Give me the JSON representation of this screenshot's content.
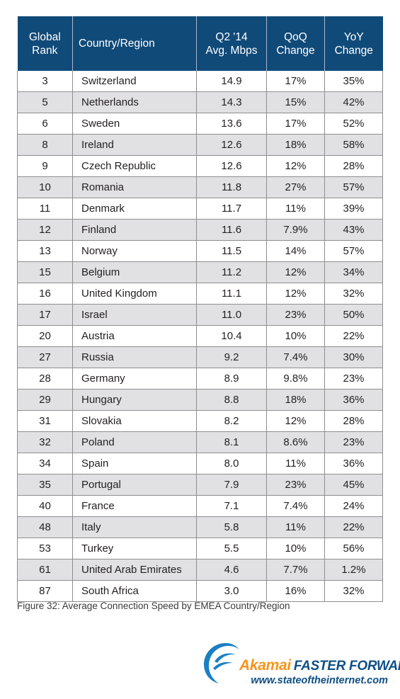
{
  "table": {
    "headers": [
      {
        "line1": "Global",
        "line2": "Rank"
      },
      {
        "line1": "Country/Region",
        "line2": ""
      },
      {
        "line1": "Q2 '14",
        "line2": "Avg. Mbps"
      },
      {
        "line1": "QoQ",
        "line2": "Change"
      },
      {
        "line1": "YoY",
        "line2": "Change"
      }
    ],
    "rows": [
      {
        "rank": "3",
        "country": "Switzerland",
        "avg": "14.9",
        "qoq": "17%",
        "yoy": "35%"
      },
      {
        "rank": "5",
        "country": "Netherlands",
        "avg": "14.3",
        "qoq": "15%",
        "yoy": "42%"
      },
      {
        "rank": "6",
        "country": "Sweden",
        "avg": "13.6",
        "qoq": "17%",
        "yoy": "52%"
      },
      {
        "rank": "8",
        "country": "Ireland",
        "avg": "12.6",
        "qoq": "18%",
        "yoy": "58%"
      },
      {
        "rank": "9",
        "country": "Czech Republic",
        "avg": "12.6",
        "qoq": "12%",
        "yoy": "28%"
      },
      {
        "rank": "10",
        "country": "Romania",
        "avg": "11.8",
        "qoq": "27%",
        "yoy": "57%"
      },
      {
        "rank": "11",
        "country": "Denmark",
        "avg": "11.7",
        "qoq": "11%",
        "yoy": "39%"
      },
      {
        "rank": "12",
        "country": "Finland",
        "avg": "11.6",
        "qoq": "7.9%",
        "yoy": "43%"
      },
      {
        "rank": "13",
        "country": "Norway",
        "avg": "11.5",
        "qoq": "14%",
        "yoy": "57%"
      },
      {
        "rank": "15",
        "country": "Belgium",
        "avg": "11.2",
        "qoq": "12%",
        "yoy": "34%"
      },
      {
        "rank": "16",
        "country": "United Kingdom",
        "avg": "11.1",
        "qoq": "12%",
        "yoy": "32%"
      },
      {
        "rank": "17",
        "country": "Israel",
        "avg": "11.0",
        "qoq": "23%",
        "yoy": "50%"
      },
      {
        "rank": "20",
        "country": "Austria",
        "avg": "10.4",
        "qoq": "10%",
        "yoy": "22%"
      },
      {
        "rank": "27",
        "country": "Russia",
        "avg": "9.2",
        "qoq": "7.4%",
        "yoy": "30%"
      },
      {
        "rank": "28",
        "country": "Germany",
        "avg": "8.9",
        "qoq": "9.8%",
        "yoy": "23%"
      },
      {
        "rank": "29",
        "country": "Hungary",
        "avg": "8.8",
        "qoq": "18%",
        "yoy": "36%"
      },
      {
        "rank": "31",
        "country": "Slovakia",
        "avg": "8.2",
        "qoq": "12%",
        "yoy": "28%"
      },
      {
        "rank": "32",
        "country": "Poland",
        "avg": "8.1",
        "qoq": "8.6%",
        "yoy": "23%"
      },
      {
        "rank": "34",
        "country": "Spain",
        "avg": "8.0",
        "qoq": "11%",
        "yoy": "36%"
      },
      {
        "rank": "35",
        "country": "Portugal",
        "avg": "7.9",
        "qoq": "23%",
        "yoy": "45%"
      },
      {
        "rank": "40",
        "country": "France",
        "avg": "7.1",
        "qoq": "7.4%",
        "yoy": "24%"
      },
      {
        "rank": "48",
        "country": "Italy",
        "avg": "5.8",
        "qoq": "11%",
        "yoy": "22%"
      },
      {
        "rank": "53",
        "country": "Turkey",
        "avg": "5.5",
        "qoq": "10%",
        "yoy": "56%"
      },
      {
        "rank": "61",
        "country": "United Arab Emirates",
        "avg": "4.6",
        "qoq": "7.7%",
        "yoy": "1.2%"
      },
      {
        "rank": "87",
        "country": "South Africa",
        "avg": "3.0",
        "qoq": "16%",
        "yoy": "32%"
      }
    ]
  },
  "caption": "Figure 32: Average Connection Speed by EMEA Country/Region",
  "logo": {
    "icon": "akamai-swoosh-icon",
    "name": "Akamai",
    "tagline": "FASTER FORWARD",
    "url": "www.stateoftheinternet.com"
  },
  "colors": {
    "header_bg": "#104a78",
    "stripe_bg": "#e1e1e3",
    "brand_orange": "#f7941d",
    "brand_blue": "#0e4f86"
  }
}
